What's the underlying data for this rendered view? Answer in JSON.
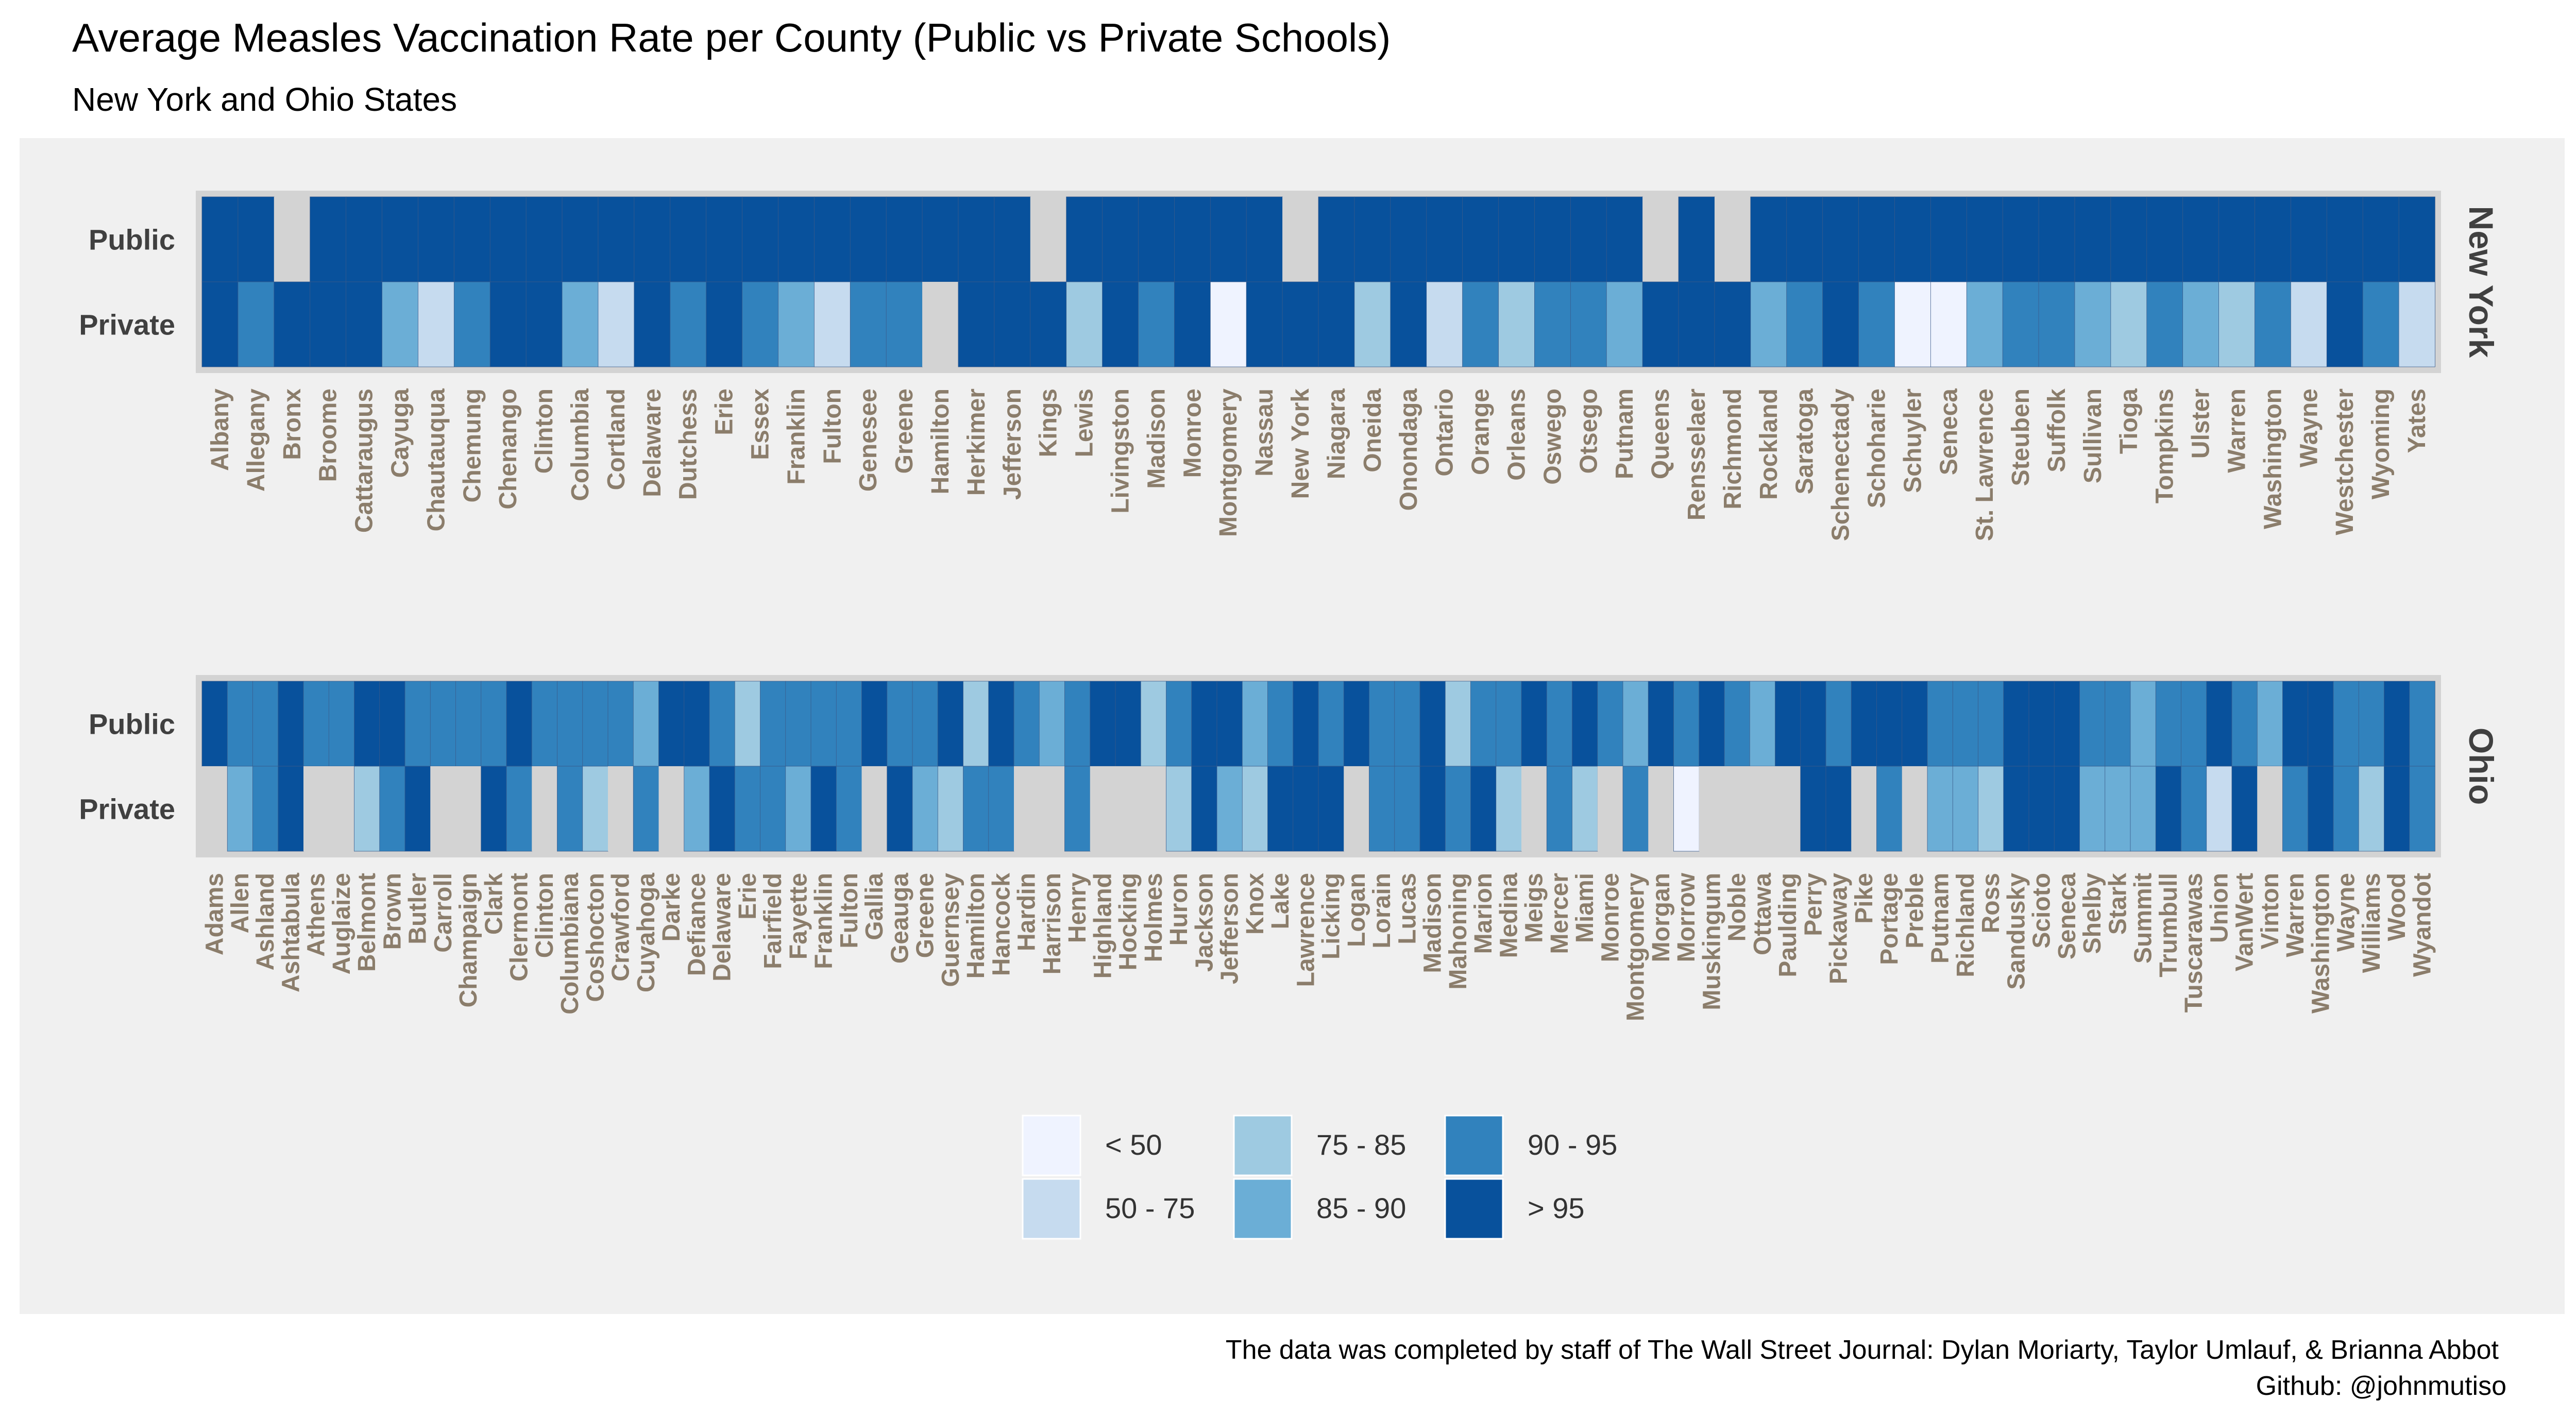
{
  "chart_data": {
    "type": "heatmap",
    "title": "Average Measles Vaccination Rate per County (Public vs Private Schools)",
    "subtitle": "New York and Ohio States",
    "caption": [
      "The data was completed by staff of The Wall Street Journal: Dylan Moriarty, Taylor Umlauf, & Brianna Abbot",
      "Github: @johnmutiso"
    ],
    "rows": [
      "Public",
      "Private"
    ],
    "legend": {
      "categories": [
        "< 50",
        "50 - 75",
        "75 - 85",
        "85 - 90",
        "90 - 95",
        "> 95"
      ],
      "colors": [
        "#eff3ff",
        "#c6dbef",
        "#9ecae1",
        "#6baed6",
        "#3182bd",
        "#08519c"
      ],
      "na_color": "#d3d3d3"
    },
    "facets": [
      {
        "name": "New York",
        "counties": [
          "Albany",
          "Allegany",
          "Bronx",
          "Broome",
          "Cattaraugus",
          "Cayuga",
          "Chautauqua",
          "Chemung",
          "Chenango",
          "Clinton",
          "Columbia",
          "Cortland",
          "Delaware",
          "Dutchess",
          "Erie",
          "Essex",
          "Franklin",
          "Fulton",
          "Genesee",
          "Greene",
          "Hamilton",
          "Herkimer",
          "Jefferson",
          "Kings",
          "Lewis",
          "Livingston",
          "Madison",
          "Monroe",
          "Montgomery",
          "Nassau",
          "New York",
          "Niagara",
          "Oneida",
          "Onondaga",
          "Ontario",
          "Orange",
          "Orleans",
          "Oswego",
          "Otsego",
          "Putnam",
          "Queens",
          "Rensselaer",
          "Richmond",
          "Rockland",
          "Saratoga",
          "Schenectady",
          "Schoharie",
          "Schuyler",
          "Seneca",
          "St. Lawrence",
          "Steuben",
          "Suffolk",
          "Sullivan",
          "Tioga",
          "Tompkins",
          "Ulster",
          "Warren",
          "Washington",
          "Wayne",
          "Westchester",
          "Wyoming",
          "Yates"
        ],
        "public": [
          "> 95",
          "> 95",
          null,
          "> 95",
          "> 95",
          "> 95",
          "> 95",
          "> 95",
          "> 95",
          "> 95",
          "> 95",
          "> 95",
          "> 95",
          "> 95",
          "> 95",
          "> 95",
          "> 95",
          "> 95",
          "> 95",
          "> 95",
          "> 95",
          "> 95",
          "> 95",
          null,
          "> 95",
          "> 95",
          "> 95",
          "> 95",
          "> 95",
          "> 95",
          null,
          "> 95",
          "> 95",
          "> 95",
          "> 95",
          "> 95",
          "> 95",
          "> 95",
          "> 95",
          "> 95",
          null,
          "> 95",
          null,
          "> 95",
          "> 95",
          "> 95",
          "> 95",
          "> 95",
          "> 95",
          "> 95",
          "> 95",
          "> 95",
          "> 95",
          "> 95",
          "> 95",
          "> 95",
          "> 95",
          "> 95",
          "> 95",
          "> 95",
          "> 95",
          "> 95"
        ],
        "private": [
          "> 95",
          "90 - 95",
          "> 95",
          "> 95",
          "> 95",
          "85 - 90",
          "50 - 75",
          "90 - 95",
          "> 95",
          "> 95",
          "85 - 90",
          "50 - 75",
          "> 95",
          "90 - 95",
          "> 95",
          "90 - 95",
          "85 - 90",
          "50 - 75",
          "90 - 95",
          "90 - 95",
          null,
          "> 95",
          "> 95",
          "> 95",
          "75 - 85",
          "> 95",
          "90 - 95",
          "> 95",
          "< 50",
          "> 95",
          "> 95",
          "> 95",
          "75 - 85",
          "> 95",
          "50 - 75",
          "90 - 95",
          "75 - 85",
          "90 - 95",
          "90 - 95",
          "85 - 90",
          "> 95",
          "> 95",
          "> 95",
          "85 - 90",
          "90 - 95",
          "> 95",
          "90 - 95",
          "< 50",
          "< 50",
          "85 - 90",
          "90 - 95",
          "90 - 95",
          "85 - 90",
          "75 - 85",
          "90 - 95",
          "85 - 90",
          "75 - 85",
          "90 - 95",
          "50 - 75",
          "> 95",
          "90 - 95",
          "50 - 75"
        ]
      },
      {
        "name": "Ohio",
        "counties": [
          "Adams",
          "Allen",
          "Ashland",
          "Ashtabula",
          "Athens",
          "Auglaize",
          "Belmont",
          "Brown",
          "Butler",
          "Carroll",
          "Champaign",
          "Clark",
          "Clermont",
          "Clinton",
          "Columbiana",
          "Coshocton",
          "Crawford",
          "Cuyahoga",
          "Darke",
          "Defiance",
          "Delaware",
          "Erie",
          "Fairfield",
          "Fayette",
          "Franklin",
          "Fulton",
          "Gallia",
          "Geauga",
          "Greene",
          "Guernsey",
          "Hamilton",
          "Hancock",
          "Hardin",
          "Harrison",
          "Henry",
          "Highland",
          "Hocking",
          "Holmes",
          "Huron",
          "Jackson",
          "Jefferson",
          "Knox",
          "Lake",
          "Lawrence",
          "Licking",
          "Logan",
          "Lorain",
          "Lucas",
          "Madison",
          "Mahoning",
          "Marion",
          "Medina",
          "Meigs",
          "Mercer",
          "Miami",
          "Monroe",
          "Montgomery",
          "Morgan",
          "Morrow",
          "Muskingum",
          "Noble",
          "Ottawa",
          "Paulding",
          "Perry",
          "Pickaway",
          "Pike",
          "Portage",
          "Preble",
          "Putnam",
          "Richland",
          "Ross",
          "Sandusky",
          "Scioto",
          "Seneca",
          "Shelby",
          "Stark",
          "Summit",
          "Trumbull",
          "Tuscarawas",
          "Union",
          "VanWert",
          "Vinton",
          "Warren",
          "Washington",
          "Wayne",
          "Williams",
          "Wood",
          "Wyandot"
        ],
        "public": [
          "> 95",
          "90 - 95",
          "90 - 95",
          "> 95",
          "90 - 95",
          "90 - 95",
          "> 95",
          "> 95",
          "90 - 95",
          "90 - 95",
          "90 - 95",
          "90 - 95",
          "> 95",
          "90 - 95",
          "90 - 95",
          "90 - 95",
          "90 - 95",
          "85 - 90",
          "> 95",
          "> 95",
          "90 - 95",
          "75 - 85",
          "90 - 95",
          "90 - 95",
          "90 - 95",
          "90 - 95",
          "> 95",
          "90 - 95",
          "90 - 95",
          "> 95",
          "75 - 85",
          "> 95",
          "90 - 95",
          "85 - 90",
          "90 - 95",
          "> 95",
          "> 95",
          "75 - 85",
          "90 - 95",
          "> 95",
          "> 95",
          "85 - 90",
          "90 - 95",
          "> 95",
          "90 - 95",
          "> 95",
          "90 - 95",
          "90 - 95",
          "> 95",
          "75 - 85",
          "90 - 95",
          "90 - 95",
          "> 95",
          "90 - 95",
          "> 95",
          "90 - 95",
          "85 - 90",
          "> 95",
          "90 - 95",
          "> 95",
          "90 - 95",
          "85 - 90",
          "> 95",
          "> 95",
          "90 - 95",
          "> 95",
          "> 95",
          "> 95",
          "90 - 95",
          "90 - 95",
          "90 - 95",
          "> 95",
          "> 95",
          "> 95",
          "90 - 95",
          "90 - 95",
          "85 - 90",
          "90 - 95",
          "90 - 95",
          "> 95",
          "90 - 95",
          "85 - 90",
          "> 95",
          "> 95",
          "90 - 95",
          "90 - 95",
          "> 95",
          "90 - 95"
        ],
        "private": [
          null,
          "85 - 90",
          "90 - 95",
          "> 95",
          null,
          null,
          "75 - 85",
          "90 - 95",
          "> 95",
          null,
          null,
          "> 95",
          "90 - 95",
          null,
          "90 - 95",
          "75 - 85",
          null,
          "90 - 95",
          null,
          "85 - 90",
          "> 95",
          "90 - 95",
          "90 - 95",
          "85 - 90",
          "> 95",
          "90 - 95",
          null,
          "> 95",
          "85 - 90",
          "75 - 85",
          "90 - 95",
          "90 - 95",
          null,
          null,
          "90 - 95",
          null,
          null,
          null,
          "75 - 85",
          "> 95",
          "85 - 90",
          "75 - 85",
          "> 95",
          "> 95",
          "> 95",
          null,
          "90 - 95",
          "90 - 95",
          "> 95",
          "90 - 95",
          "> 95",
          "75 - 85",
          null,
          "90 - 95",
          "75 - 85",
          null,
          "90 - 95",
          null,
          "< 50",
          null,
          null,
          null,
          null,
          "> 95",
          "> 95",
          null,
          "90 - 95",
          null,
          "85 - 90",
          "85 - 90",
          "75 - 85",
          "> 95",
          "> 95",
          "> 95",
          "85 - 90",
          "85 - 90",
          "85 - 90",
          "> 95",
          "90 - 95",
          "50 - 75",
          "> 95",
          null,
          "90 - 95",
          "> 95",
          "90 - 95",
          "75 - 85",
          "> 95",
          "90 - 95"
        ]
      }
    ]
  }
}
